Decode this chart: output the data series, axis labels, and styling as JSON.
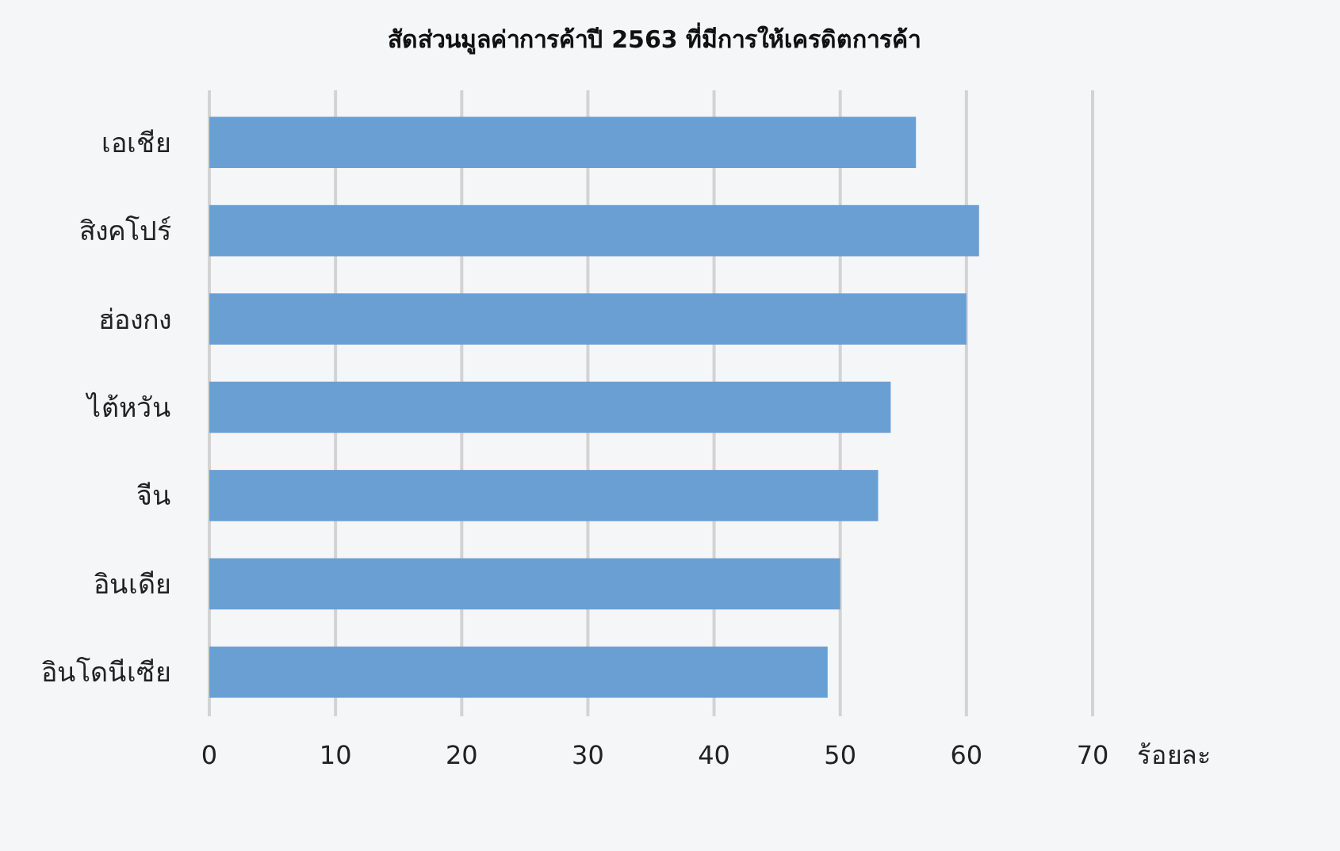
{
  "chart_data": {
    "type": "bar",
    "orientation": "horizontal",
    "title": "สัดส่วนมูลค่าการค้าปี 2563 ที่มีการให้เครดิตการค้า",
    "xlabel": "ร้อยละ",
    "categories": [
      "เอเชีย",
      "สิงคโปร์",
      "ฮ่องกง",
      "ไต้หวัน",
      "จีน",
      "อินเดีย",
      "อินโดนีเซีย"
    ],
    "values": [
      56,
      61,
      60,
      54,
      53,
      50,
      49
    ],
    "color": "#6a9fd4",
    "xlim": [
      0,
      70
    ],
    "xticks": [
      0,
      10,
      20,
      30,
      40,
      50,
      60,
      70
    ],
    "grid": "x"
  }
}
